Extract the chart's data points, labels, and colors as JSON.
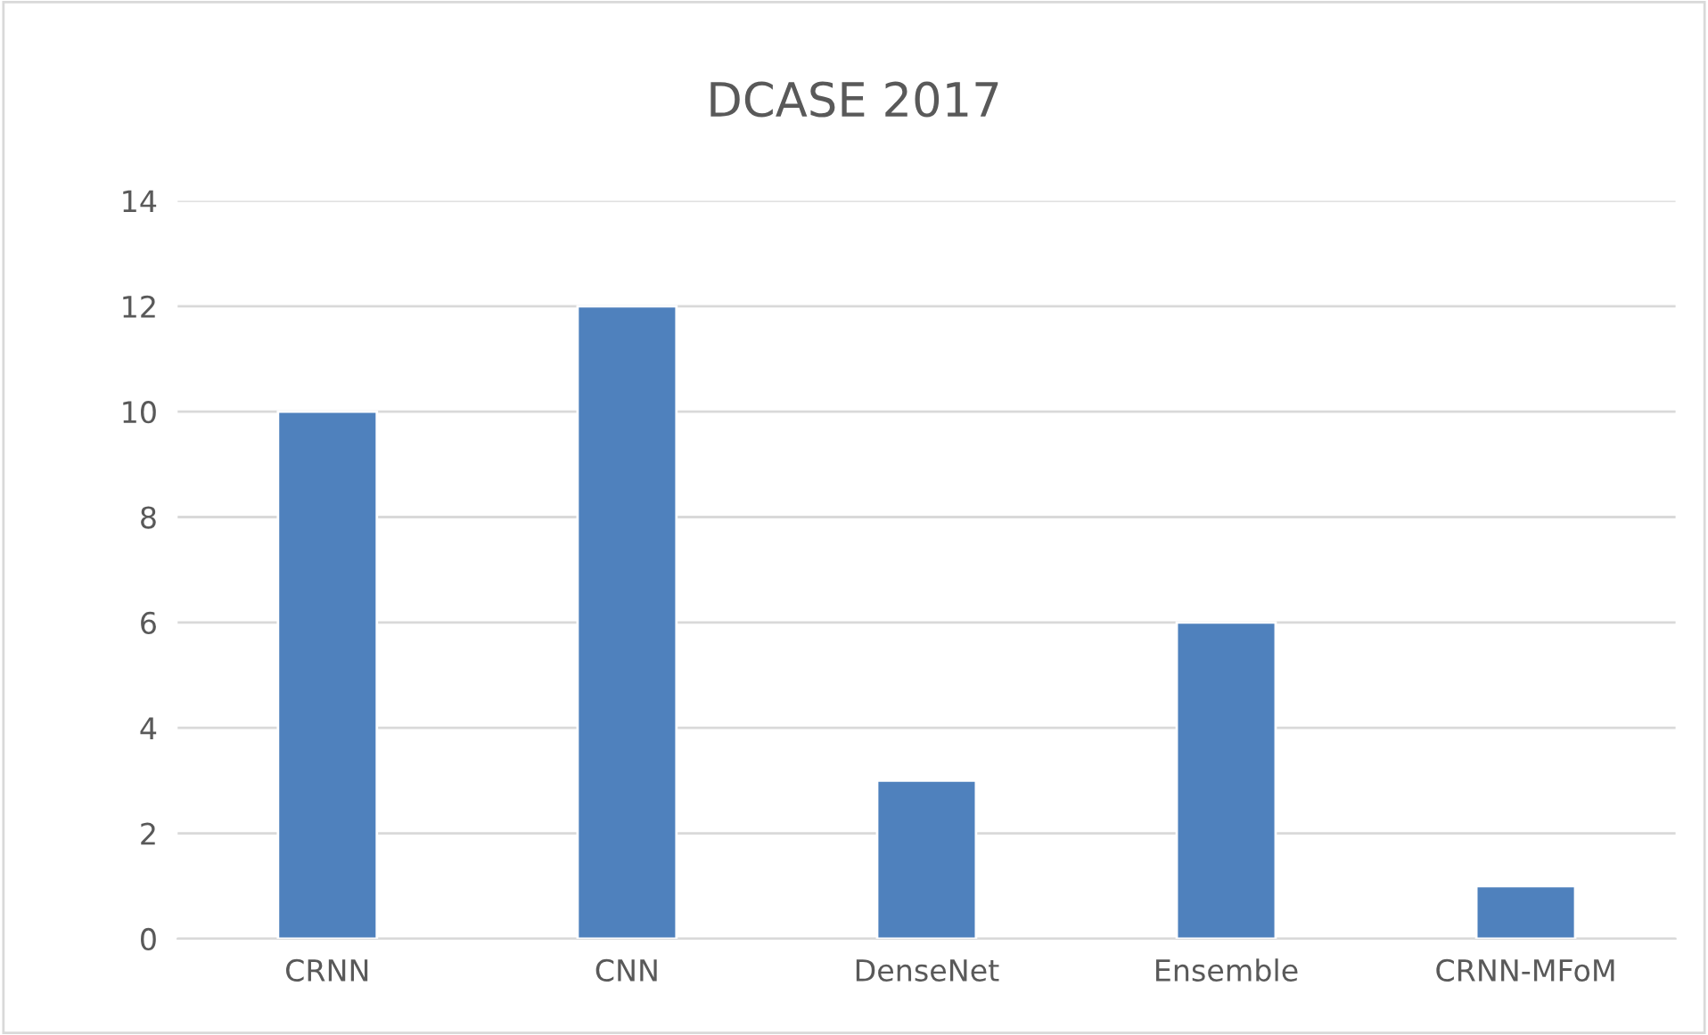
{
  "chart_data": {
    "type": "bar",
    "title": "DCASE 2017",
    "categories": [
      "CRNN",
      "CNN",
      "DenseNet",
      "Ensemble",
      "CRNN-MFoM"
    ],
    "values": [
      10,
      12,
      3,
      6,
      1
    ],
    "color": "#4f81bd",
    "ylim": [
      0,
      14
    ],
    "yticks": [
      0,
      2,
      4,
      6,
      8,
      10,
      12,
      14
    ],
    "grid": "y"
  }
}
